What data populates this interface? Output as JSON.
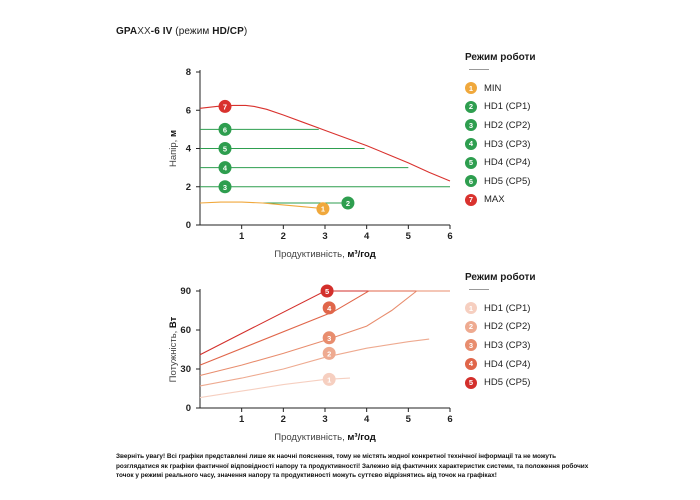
{
  "header": {
    "model_bold": "GPA",
    "model_light": "XX",
    "model_suffix": "-6 IV",
    "mode_prefix": " (режим ",
    "mode_bold": "HD/CP",
    "mode_suffix": ")"
  },
  "legend_top": {
    "title": "Режим роботи",
    "items": [
      {
        "num": "1",
        "label": "MIN",
        "color": "#f0a83c"
      },
      {
        "num": "2",
        "label": "HD1 (CP1)",
        "color": "#2e9e4f"
      },
      {
        "num": "3",
        "label": "HD2 (CP2)",
        "color": "#2e9e4f"
      },
      {
        "num": "4",
        "label": "HD3 (CP3)",
        "color": "#2e9e4f"
      },
      {
        "num": "5",
        "label": "HD4 (CP4)",
        "color": "#2e9e4f"
      },
      {
        "num": "6",
        "label": "HD5 (CP5)",
        "color": "#2e9e4f"
      },
      {
        "num": "7",
        "label": "MAX",
        "color": "#d9322e"
      }
    ]
  },
  "legend_bottom": {
    "title": "Режим роботи",
    "items": [
      {
        "num": "1",
        "label": "HD1 (CP1)",
        "color": "#f6cfc0"
      },
      {
        "num": "2",
        "label": "HD2 (CP2)",
        "color": "#eeaa90"
      },
      {
        "num": "3",
        "label": "HD3 (CP3)",
        "color": "#e88d6e"
      },
      {
        "num": "4",
        "label": "HD4 (CP4)",
        "color": "#e0664a"
      },
      {
        "num": "5",
        "label": "HD5 (CP5)",
        "color": "#d32f2b"
      }
    ]
  },
  "chart_data": [
    {
      "type": "line",
      "xlabel_plain": "Продуктивність, ",
      "xlabel_bold": "м³/год",
      "ylabel_plain": "Напір, ",
      "ylabel_bold": "м",
      "xlim": [
        0,
        6
      ],
      "ylim": [
        0,
        8
      ],
      "x_ticks": [
        0,
        1,
        2,
        3,
        4,
        5,
        6
      ],
      "y_ticks": [
        0,
        2,
        4,
        6,
        8
      ],
      "series": [
        {
          "label": "7",
          "color": "#d9322e",
          "x": [
            0,
            0.4,
            0.8,
            1.1,
            1.3,
            1.6,
            2.0,
            2.5,
            3.0,
            3.5,
            4.0,
            4.5,
            5.0,
            5.5,
            6.0
          ],
          "y": [
            6.1,
            6.2,
            6.25,
            6.25,
            6.2,
            6.05,
            5.75,
            5.35,
            4.95,
            4.55,
            4.15,
            3.7,
            3.25,
            2.75,
            2.3
          ],
          "marker_x": 0.6,
          "marker_y": 6.2
        },
        {
          "label": "6",
          "color": "#2e9e4f",
          "x": [
            0,
            2.85
          ],
          "y": [
            5.0,
            5.0
          ],
          "marker_x": 0.6,
          "marker_y": 5.0
        },
        {
          "label": "5",
          "color": "#2e9e4f",
          "x": [
            0,
            3.95
          ],
          "y": [
            4.0,
            4.0
          ],
          "marker_x": 0.6,
          "marker_y": 4.0
        },
        {
          "label": "4",
          "color": "#2e9e4f",
          "x": [
            0,
            5.0
          ],
          "y": [
            3.0,
            3.0
          ],
          "marker_x": 0.6,
          "marker_y": 3.0
        },
        {
          "label": "3",
          "color": "#2e9e4f",
          "x": [
            0,
            6.0
          ],
          "y": [
            2.0,
            2.0
          ],
          "marker_x": 0.6,
          "marker_y": 2.0
        },
        {
          "label": "2",
          "color": "#2e9e4f",
          "x": [
            1.5,
            3.7
          ],
          "y": [
            1.15,
            1.15
          ],
          "marker_x": 3.55,
          "marker_y": 1.15
        },
        {
          "label": "1",
          "color": "#f0a83c",
          "x": [
            0,
            0.5,
            1.0,
            1.5,
            2.0,
            2.5,
            3.0
          ],
          "y": [
            1.15,
            1.2,
            1.2,
            1.15,
            1.05,
            0.95,
            0.85
          ],
          "marker_x": 2.95,
          "marker_y": 0.85
        }
      ]
    },
    {
      "type": "line",
      "xlabel_plain": "Продуктивність, ",
      "xlabel_bold": "м³/год",
      "ylabel_plain": "Потужність, ",
      "ylabel_bold": "Вт",
      "xlim": [
        0,
        6
      ],
      "ylim": [
        0,
        90
      ],
      "x_ticks": [
        0,
        1,
        2,
        3,
        4,
        5,
        6
      ],
      "y_ticks": [
        0,
        30,
        60,
        90
      ],
      "series": [
        {
          "label": "5",
          "color": "#d32f2b",
          "x": [
            0,
            3.0,
            6.0
          ],
          "y": [
            41,
            90,
            90
          ],
          "marker_x": 3.05,
          "marker_y": 90
        },
        {
          "label": "4",
          "color": "#e0664a",
          "x": [
            0,
            3.2,
            4.05,
            6.0
          ],
          "y": [
            33,
            74,
            90,
            90
          ],
          "marker_x": 3.1,
          "marker_y": 77
        },
        {
          "label": "3",
          "color": "#e88d6e",
          "x": [
            0,
            1.0,
            2.0,
            3.0,
            4.0,
            4.6,
            5.2,
            6.0
          ],
          "y": [
            25,
            33,
            42,
            52,
            63,
            75,
            90,
            90
          ],
          "marker_x": 3.1,
          "marker_y": 54
        },
        {
          "label": "2",
          "color": "#eeaa90",
          "x": [
            0,
            1.0,
            2.0,
            3.0,
            4.0,
            5.0,
            5.5
          ],
          "y": [
            17,
            23,
            30,
            39,
            46,
            51,
            53
          ],
          "marker_x": 3.1,
          "marker_y": 42
        },
        {
          "label": "1",
          "color": "#f6cfc0",
          "x": [
            0,
            1.0,
            2.0,
            3.0,
            3.6
          ],
          "y": [
            8,
            13,
            18,
            22,
            23
          ],
          "marker_x": 3.1,
          "marker_y": 22
        }
      ]
    }
  ],
  "disclaimer": "Зверніть увагу! Всі графіки представлені лише як наочні пояснення, тому не містять жодної конкретної технічної інформації та не можуть розглядатися як графіки фактичної відповідності напору та продуктивності! Залежно від фактичних характеристик системи, та положення робочих точок у режимі реального часу, значення напору та продуктивності можуть суттєво відрізнятись від точок на графіках!"
}
